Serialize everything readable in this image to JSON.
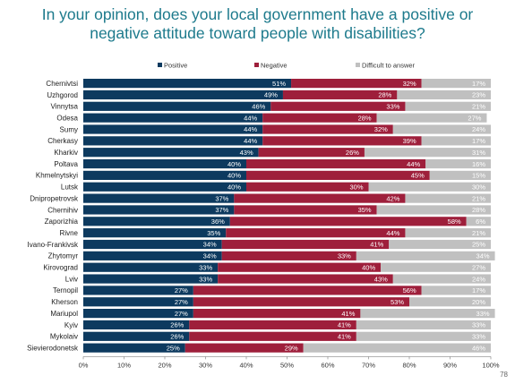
{
  "title_lines": [
    "In your opinion, does your local government have a positive or",
    "negative attitude toward people with disabilities?"
  ],
  "page_number": "78",
  "chart_data": {
    "type": "bar",
    "orientation": "horizontal",
    "stacked": true,
    "title": "In your opinion, does your local government have a positive or negative attitude toward people with disabilities?",
    "xlim": [
      0,
      100
    ],
    "x_ticks": [
      "0%",
      "10%",
      "20%",
      "30%",
      "40%",
      "50%",
      "60%",
      "70%",
      "80%",
      "90%",
      "100%"
    ],
    "legend_position": "top",
    "grid": false,
    "categories": [
      "Chernivtsi",
      "Uzhgorod",
      "Vinnytsa",
      "Odesa",
      "Sumy",
      "Cherkasy",
      "Kharkiv",
      "Poltava",
      "Khmelnytskyi",
      "Lutsk",
      "Dnipropetrovsk",
      "Chernihiv",
      "Zaporizhia",
      "Rivne",
      "Ivano-Frankivsk",
      "Zhytomyr",
      "Kirovograd",
      "Lviv",
      "Ternopil",
      "Kherson",
      "Mariupol",
      "Kyiv",
      "Mykolaiv",
      "Sievierodonetsk"
    ],
    "series": [
      {
        "name": "Positive",
        "color": "#0d3a5f",
        "values": [
          51,
          49,
          46,
          44,
          44,
          44,
          43,
          40,
          40,
          40,
          37,
          37,
          36,
          35,
          34,
          34,
          33,
          33,
          27,
          27,
          27,
          26,
          26,
          25
        ]
      },
      {
        "name": "Negative",
        "color": "#9e1f3b",
        "values": [
          32,
          28,
          33,
          28,
          32,
          39,
          26,
          44,
          45,
          30,
          42,
          35,
          58,
          44,
          41,
          33,
          40,
          43,
          56,
          53,
          41,
          41,
          41,
          29
        ]
      },
      {
        "name": "Difficult to answer",
        "color": "#c0c0c0",
        "values": [
          17,
          23,
          21,
          27,
          24,
          17,
          31,
          16,
          15,
          30,
          21,
          28,
          6,
          21,
          25,
          34,
          27,
          24,
          17,
          20,
          33,
          33,
          33,
          46
        ]
      }
    ]
  }
}
